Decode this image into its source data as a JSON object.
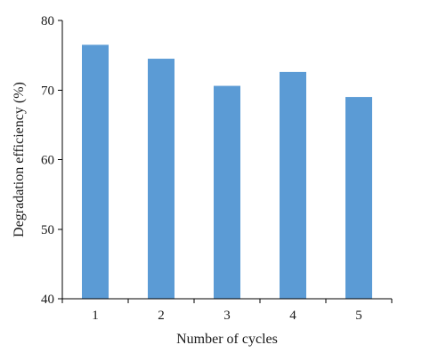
{
  "chart_data": {
    "type": "bar",
    "categories": [
      "1",
      "2",
      "3",
      "4",
      "5"
    ],
    "values": [
      76.5,
      74.5,
      70.6,
      72.6,
      69.0
    ],
    "title": "",
    "xlabel": "Number of cycles",
    "ylabel": "Degradation efficiency (%)",
    "ylim": [
      40,
      80
    ],
    "yticks": [
      "40",
      "50",
      "60",
      "70",
      "80"
    ],
    "grid": false,
    "legend": "none",
    "bar_color": "#5b9bd5"
  }
}
